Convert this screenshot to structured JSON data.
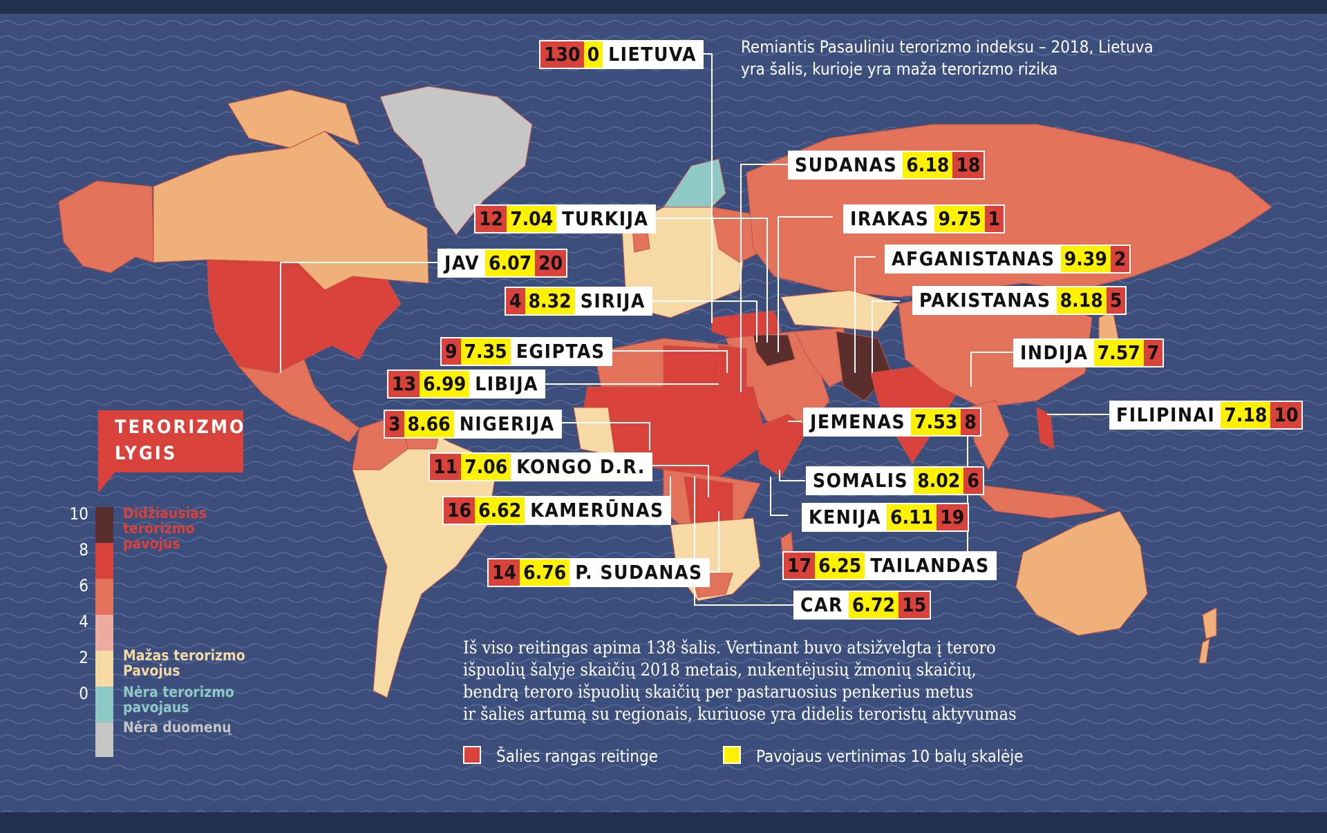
{
  "intro": {
    "line1": "Remiantis Pasauliniu terorizmo indeksu – 2018, Lietuva",
    "line2": "yra šalis, kurioje yra maža terorizmo rizika"
  },
  "legend": {
    "title_line1": "TERORIZMO",
    "title_line2": "LYGIS",
    "ticks": [
      "10",
      "8",
      "6",
      "4",
      "2",
      "0"
    ],
    "highest_l1": "Didžiausias",
    "highest_l2": "terorizmo",
    "highest_l3": "pavojus",
    "low_l1": "Mažas terorizmo",
    "low_l2": "Pavojus",
    "none_l1": "Nėra terorizmo",
    "none_l2": "pavojaus",
    "nodata": "Nėra duomenų",
    "colors": {
      "10": "#5b2e2e",
      "8": "#d9413b",
      "6": "#e2725a",
      "4": "#ecaaa1",
      "2": "#f6d9a4",
      "0": "#8fc9c6",
      "nodata": "#c6c6c6"
    }
  },
  "countries": [
    {
      "name": "LIETUVA",
      "rank": "130",
      "score": "0",
      "order": "rs-first"
    },
    {
      "name": "SUDANAS",
      "rank": "18",
      "score": "6.18",
      "order": "name-first"
    },
    {
      "name": "TURKIJA",
      "rank": "12",
      "score": "7.04",
      "order": "rs-first"
    },
    {
      "name": "IRAKAS",
      "rank": "1",
      "score": "9.75",
      "order": "name-first"
    },
    {
      "name": "JAV",
      "rank": "20",
      "score": "6.07",
      "order": "name-first"
    },
    {
      "name": "AFGANISTANAS",
      "rank": "2",
      "score": "9.39",
      "order": "name-first"
    },
    {
      "name": "SIRIJA",
      "rank": "4",
      "score": "8.32",
      "order": "rs-first"
    },
    {
      "name": "PAKISTANAS",
      "rank": "5",
      "score": "8.18",
      "order": "name-first"
    },
    {
      "name": "EGIPTAS",
      "rank": "9",
      "score": "7.35",
      "order": "rs-first"
    },
    {
      "name": "INDIJA",
      "rank": "7",
      "score": "7.57",
      "order": "name-first"
    },
    {
      "name": "LIBIJA",
      "rank": "13",
      "score": "6.99",
      "order": "rs-first"
    },
    {
      "name": "FILIPINAI",
      "rank": "10",
      "score": "7.18",
      "order": "name-first"
    },
    {
      "name": "NIGERIJA",
      "rank": "3",
      "score": "8.66",
      "order": "rs-first"
    },
    {
      "name": "JEMENAS",
      "rank": "8",
      "score": "7.53",
      "order": "name-first"
    },
    {
      "name": "KONGO D.R.",
      "rank": "11",
      "score": "7.06",
      "order": "rs-first"
    },
    {
      "name": "SOMALIS",
      "rank": "6",
      "score": "8.02",
      "order": "name-first"
    },
    {
      "name": "KAMERŪNAS",
      "rank": "16",
      "score": "6.62",
      "order": "rs-first"
    },
    {
      "name": "KENIJA",
      "rank": "19",
      "score": "6.11",
      "order": "name-first"
    },
    {
      "name": "TAILANDAS",
      "rank": "17",
      "score": "6.25",
      "order": "rs-first"
    },
    {
      "name": "P. SUDANAS",
      "rank": "14",
      "score": "6.76",
      "order": "rs-first"
    },
    {
      "name": "CAR",
      "rank": "15",
      "score": "6.72",
      "order": "name-first"
    }
  ],
  "body": {
    "line1": "Iš viso reitingas apima 138 šalis. Vertinant buvo atsižvelgta į teroro",
    "line2": "išpuolių šalyje skaičių 2018 metais, nukentėjusių žmonių skaičių,",
    "line3": "bendrą teroro išpuolių skaičių per pastaruosius penkerius metus",
    "line4": "ir šalies artumą su regionais, kuriuose yra didelis teroristų aktyvumas"
  },
  "key": {
    "rank_label": "Šalies rangas reitinge",
    "score_label": "Pavojaus vertinimas 10 balų skalėje",
    "rank_color": "#d9413b",
    "score_color": "#fff200"
  }
}
